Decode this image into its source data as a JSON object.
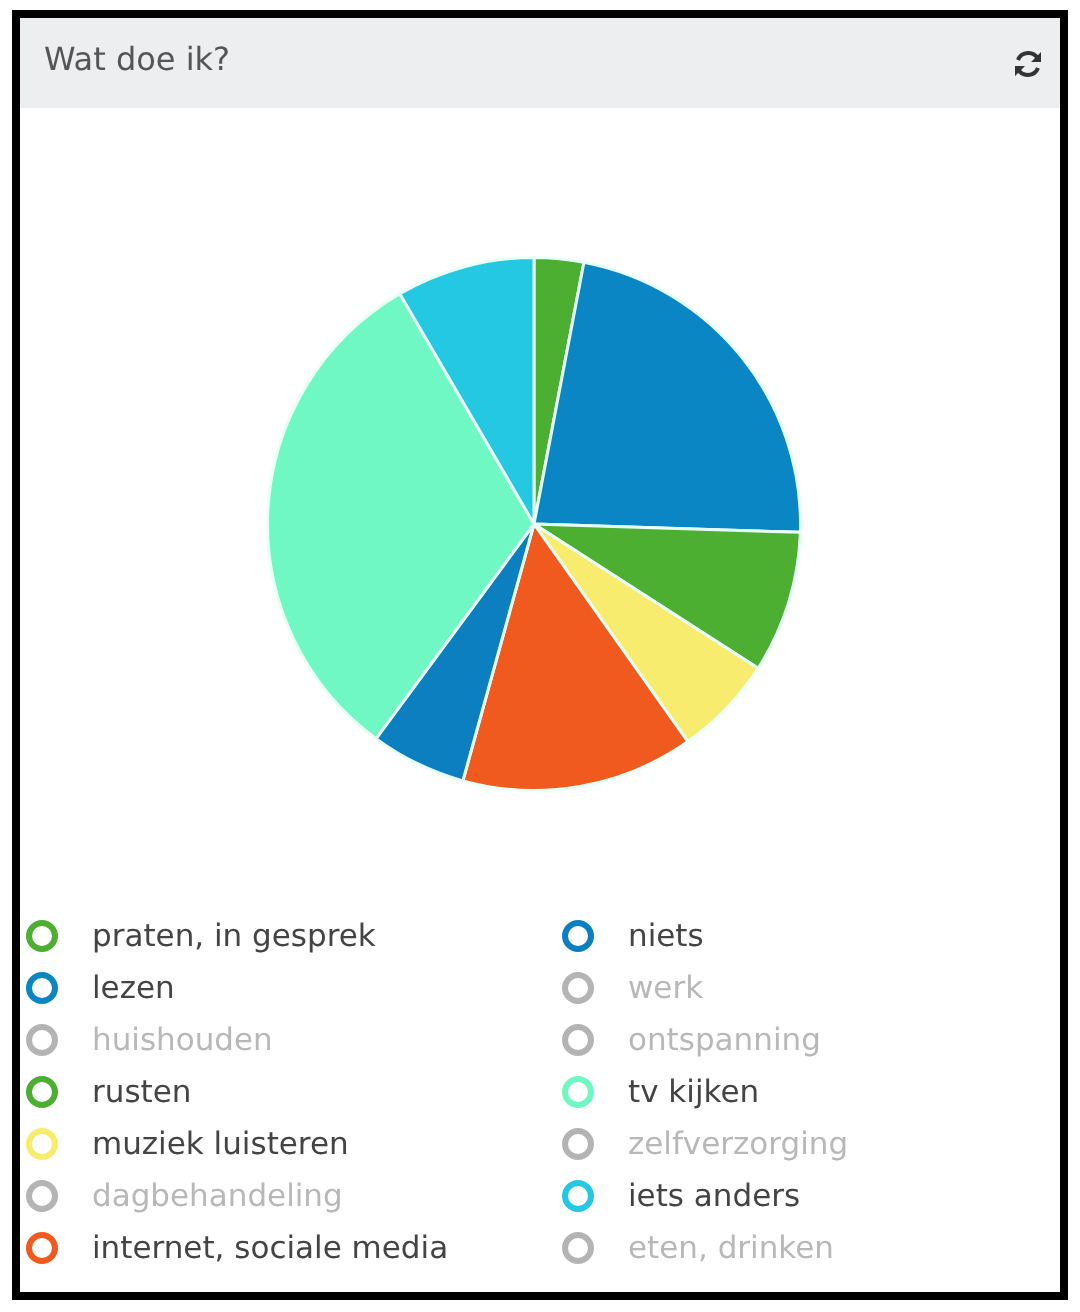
{
  "chart_data": {
    "type": "pie",
    "title": "Wat doe ik?",
    "categories": [
      "praten, in gesprek",
      "lezen",
      "huishouden",
      "rusten",
      "muziek luisteren",
      "dagbehandeling",
      "internet, sociale media",
      "niets",
      "werk",
      "ontspanning",
      "tv kijken",
      "zelfverzorging",
      "iets anders",
      "eten, drinken"
    ],
    "values": [
      3.0,
      22.5,
      0,
      8.6,
      6.1,
      0,
      14.1,
      5.8,
      0,
      0,
      31.5,
      0,
      8.4,
      0
    ],
    "colors": [
      "#4caf32",
      "#0a86c4",
      "#b4b4b4",
      "#4caf32",
      "#f7ec6e",
      "#b4b4b4",
      "#f05a1e",
      "#0b7fc0",
      "#b4b4b4",
      "#b4b4b4",
      "#6ff7c4",
      "#b4b4b4",
      "#24c8e2",
      "#b4b4b4"
    ],
    "legend": "bottom"
  }
}
